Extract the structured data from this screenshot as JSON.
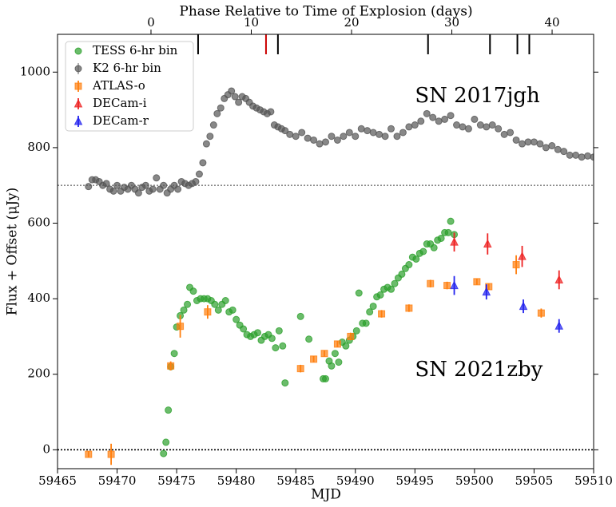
{
  "chart_data": {
    "type": "scatter",
    "xlabel": "MJD",
    "ylabel": "Flux + Offset (μJy)",
    "x2label": "Phase Relative to Time of Explosion (days)",
    "xlim": [
      59465,
      59510
    ],
    "ylim": [
      -50,
      1100
    ],
    "x2lim": [
      -9.32,
      44.14
    ],
    "xticks": [
      59465,
      59470,
      59475,
      59480,
      59485,
      59490,
      59495,
      59500,
      59505,
      59510
    ],
    "yticks": [
      0,
      200,
      400,
      600,
      800,
      1000
    ],
    "x2ticks": [
      0,
      10,
      20,
      30,
      40
    ],
    "legend": "upper left",
    "hlines": [
      {
        "y": 700,
        "color": "#888888"
      },
      {
        "y": 0,
        "color": "#000000"
      }
    ],
    "event_lines": [
      {
        "x": 59476.8,
        "color": "#000000"
      },
      {
        "x": 59482.5,
        "color": "#cc0000"
      },
      {
        "x": 59483.5,
        "color": "#000000"
      },
      {
        "x": 59496.1,
        "color": "#000000"
      },
      {
        "x": 59501.3,
        "color": "#000000"
      },
      {
        "x": 59503.6,
        "color": "#000000"
      },
      {
        "x": 59504.6,
        "color": "#000000"
      }
    ],
    "annotations": [
      {
        "text": "SN 2017jgh",
        "x": 59495,
        "y": 935,
        "color": "#000000"
      },
      {
        "text": "SN 2021zby",
        "x": 59495,
        "y": 210,
        "color": "#228b22"
      }
    ],
    "series": [
      {
        "name": "TESS 6-hr bin",
        "color": "#2ca02c",
        "marker": "o",
        "x": [
          59473.9,
          59474.1,
          59474.3,
          59474.5,
          59474.8,
          59475,
          59475.3,
          59475.6,
          59475.9,
          59476.1,
          59476.4,
          59476.7,
          59477,
          59477.3,
          59477.6,
          59477.9,
          59478.2,
          59478.5,
          59478.8,
          59479.1,
          59479.4,
          59479.7,
          59480,
          59480.3,
          59480.6,
          59480.9,
          59481.2,
          59481.5,
          59481.8,
          59482.1,
          59482.4,
          59482.7,
          59483,
          59483.3,
          59483.6,
          59483.9,
          59484.1,
          59485.4,
          59486.1,
          59487.3,
          59487.5,
          59487.8,
          59488,
          59488.3,
          59488.6,
          59488.9,
          59489.2,
          59489.5,
          59489.8,
          59490.1,
          59490.3,
          59490.6,
          59490.9,
          59491.2,
          59491.5,
          59491.8,
          59492.1,
          59492.4,
          59492.7,
          59493,
          59493.3,
          59493.6,
          59493.9,
          59494.2,
          59494.5,
          59494.8,
          59495.1,
          59495.4,
          59495.7,
          59496,
          59496.3,
          59496.6,
          59496.9,
          59497.2,
          59497.5,
          59497.8,
          59498,
          59498.3
        ],
        "values": [
          -10,
          20,
          105,
          220,
          255,
          325,
          355,
          370,
          385,
          430,
          420,
          395,
          400,
          400,
          400,
          395,
          385,
          370,
          385,
          395,
          365,
          370,
          345,
          330,
          320,
          305,
          300,
          305,
          310,
          290,
          300,
          305,
          295,
          270,
          315,
          275,
          177,
          353,
          293,
          188,
          188,
          235,
          222,
          255,
          232,
          285,
          275,
          290,
          300,
          315,
          415,
          335,
          335,
          365,
          380,
          405,
          410,
          425,
          430,
          425,
          440,
          455,
          465,
          480,
          490,
          510,
          505,
          520,
          525,
          545,
          545,
          535,
          555,
          560,
          575,
          575,
          605,
          570
        ]
      },
      {
        "name": "K2 6-hr bin",
        "color": "#555555",
        "marker": "o",
        "x": [
          59467.6,
          59467.9,
          59468.2,
          59468.5,
          59468.8,
          59469.1,
          59469.4,
          59469.7,
          59470,
          59470.3,
          59470.6,
          59470.9,
          59471.2,
          59471.5,
          59471.8,
          59472.1,
          59472.4,
          59472.7,
          59473,
          59473.3,
          59473.6,
          59473.9,
          59474.2,
          59474.5,
          59474.8,
          59475.1,
          59475.4,
          59475.7,
          59476,
          59476.3,
          59476.6,
          59476.9,
          59477.2,
          59477.5,
          59477.8,
          59478.1,
          59478.4,
          59478.7,
          59479,
          59479.3,
          59479.6,
          59479.9,
          59480.2,
          59480.5,
          59480.8,
          59481.1,
          59481.4,
          59481.7,
          59482,
          59482.3,
          59482.6,
          59482.9,
          59483.2,
          59483.5,
          59483.8,
          59484.1,
          59484.5,
          59485,
          59485.5,
          59486,
          59486.5,
          59487,
          59487.5,
          59488,
          59488.5,
          59489,
          59489.5,
          59490,
          59490.5,
          59491,
          59491.5,
          59492,
          59492.5,
          59493,
          59493.5,
          59494,
          59494.5,
          59495,
          59495.5,
          59496,
          59496.5,
          59497,
          59497.5,
          59498,
          59498.5,
          59499,
          59499.5,
          59500,
          59500.5,
          59501,
          59501.5,
          59502,
          59502.5,
          59503,
          59503.5,
          59504,
          59504.5,
          59505,
          59505.5,
          59506,
          59506.5,
          59507,
          59507.5,
          59508,
          59508.5,
          59509,
          59509.5,
          59510
        ],
        "values": [
          697,
          715,
          715,
          710,
          700,
          705,
          690,
          685,
          700,
          685,
          695,
          690,
          700,
          690,
          680,
          695,
          700,
          685,
          690,
          720,
          690,
          700,
          680,
          690,
          700,
          690,
          710,
          705,
          700,
          705,
          710,
          730,
          760,
          810,
          830,
          860,
          890,
          905,
          930,
          940,
          950,
          935,
          920,
          935,
          930,
          920,
          910,
          905,
          900,
          895,
          890,
          895,
          860,
          855,
          850,
          845,
          835,
          830,
          840,
          825,
          820,
          810,
          815,
          830,
          820,
          830,
          840,
          830,
          850,
          845,
          840,
          835,
          830,
          850,
          830,
          840,
          855,
          860,
          870,
          890,
          880,
          870,
          875,
          885,
          860,
          855,
          850,
          875,
          860,
          855,
          860,
          850,
          835,
          840,
          820,
          810,
          815,
          815,
          810,
          800,
          805,
          795,
          790,
          780,
          780,
          775,
          778,
          775
        ]
      },
      {
        "name": "ATLAS-o",
        "color": "#ff7f0e",
        "marker": "s",
        "x": [
          59467.6,
          59469.5,
          59474.5,
          59475.3,
          59477.6,
          59485.4,
          59486.5,
          59487.4,
          59488.5,
          59489.6,
          59492.2,
          59494.5,
          59496.3,
          59497.7,
          59500.2,
          59501.2,
          59503.5,
          59505.6
        ],
        "values": [
          -12,
          -12,
          222,
          327,
          365,
          215,
          240,
          255,
          280,
          300,
          360,
          375,
          440,
          435,
          445,
          432,
          490,
          362
        ],
        "errors": [
          8,
          28,
          12,
          30,
          18,
          10,
          8,
          8,
          8,
          10,
          10,
          10,
          10,
          10,
          8,
          8,
          25,
          12
        ]
      },
      {
        "name": "DECam-i",
        "color": "#ee2222",
        "marker": "^",
        "x": [
          59498.3,
          59501.1,
          59504,
          59507.1
        ],
        "values": [
          550,
          545,
          512,
          450
        ],
        "errors": [
          25,
          28,
          28,
          25
        ]
      },
      {
        "name": "DECam-r",
        "color": "#2222ee",
        "marker": "^",
        "x": [
          59498.3,
          59501,
          59504.1,
          59507.1
        ],
        "values": [
          435,
          418,
          380,
          328
        ],
        "errors": [
          25,
          20,
          18,
          18
        ]
      }
    ]
  }
}
